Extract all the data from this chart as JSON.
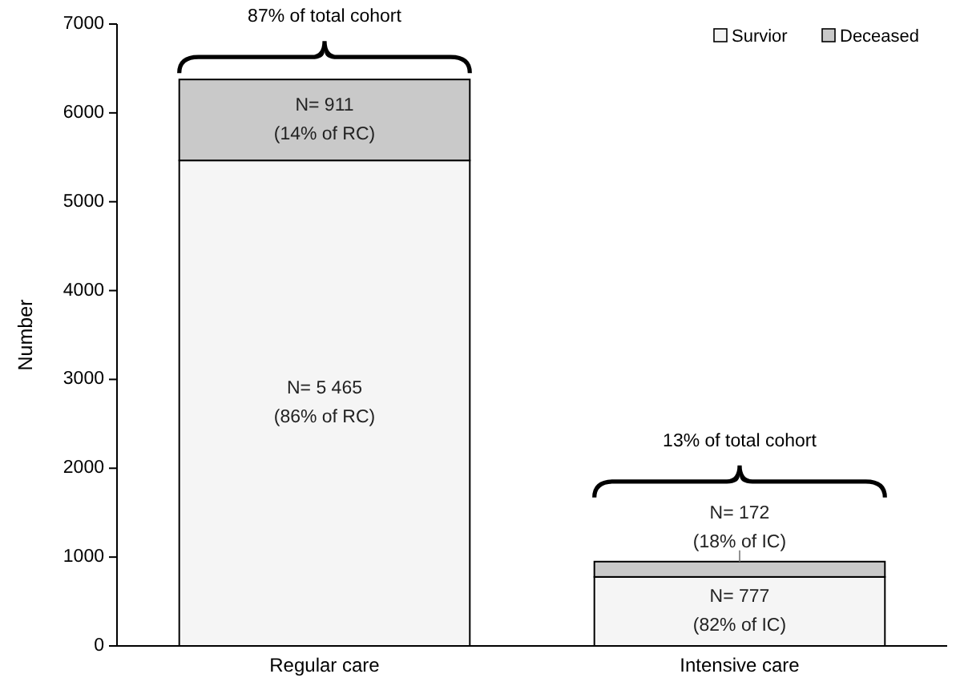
{
  "chart_data": {
    "type": "bar",
    "stacked": true,
    "ylabel": "Number",
    "categories": [
      "Regular care",
      "Intensive care"
    ],
    "series": [
      {
        "name": "Survior",
        "color": "#f5f5f5",
        "values": [
          5465,
          777
        ],
        "value_labels": [
          "N= 5 465\n(86% of RC)",
          "N= 777\n(82% of IC)"
        ]
      },
      {
        "name": "Deceased",
        "color": "#c9c9c9",
        "values": [
          911,
          172
        ],
        "value_labels": [
          "N= 911\n(14% of RC)",
          "N= 172\n(18% of IC)"
        ]
      }
    ],
    "ylim": [
      0,
      7000
    ],
    "yticks": [
      0,
      1000,
      2000,
      3000,
      4000,
      5000,
      6000,
      7000
    ],
    "grid": false,
    "legend": "top right",
    "annotations": [
      "87% of total cohort",
      "13% of total cohort"
    ]
  }
}
